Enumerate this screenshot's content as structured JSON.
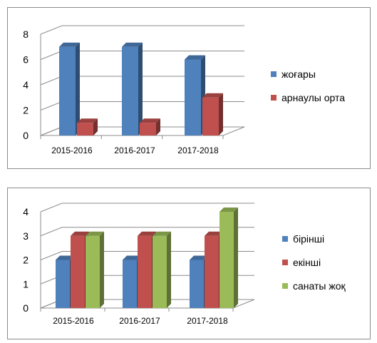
{
  "chart_data": [
    {
      "type": "bar",
      "categories": [
        "2015-2016",
        "2016-2017",
        "2017-2018"
      ],
      "series": [
        {
          "name": "жоғары",
          "values": [
            7,
            7,
            6
          ],
          "color": "#4f81bd"
        },
        {
          "name": "арнаулы орта",
          "values": [
            1,
            1,
            3
          ],
          "color": "#c0504d"
        }
      ],
      "ylim": [
        0,
        8
      ],
      "yticks": [
        "0",
        "2",
        "4",
        "6",
        "8"
      ],
      "grid": true,
      "legend": "right"
    },
    {
      "type": "bar",
      "categories": [
        "2015-2016",
        "2016-2017",
        "2017-2018"
      ],
      "series": [
        {
          "name": "бірінші",
          "values": [
            2,
            2,
            2
          ],
          "color": "#4f81bd"
        },
        {
          "name": "екінші",
          "values": [
            3,
            3,
            3
          ],
          "color": "#c0504d"
        },
        {
          "name": "санаты жоқ",
          "values": [
            3,
            3,
            4
          ],
          "color": "#9bbb59"
        }
      ],
      "ylim": [
        0,
        4
      ],
      "yticks": [
        "0",
        "1",
        "2",
        "3",
        "4"
      ],
      "grid": true,
      "legend": "right"
    }
  ]
}
